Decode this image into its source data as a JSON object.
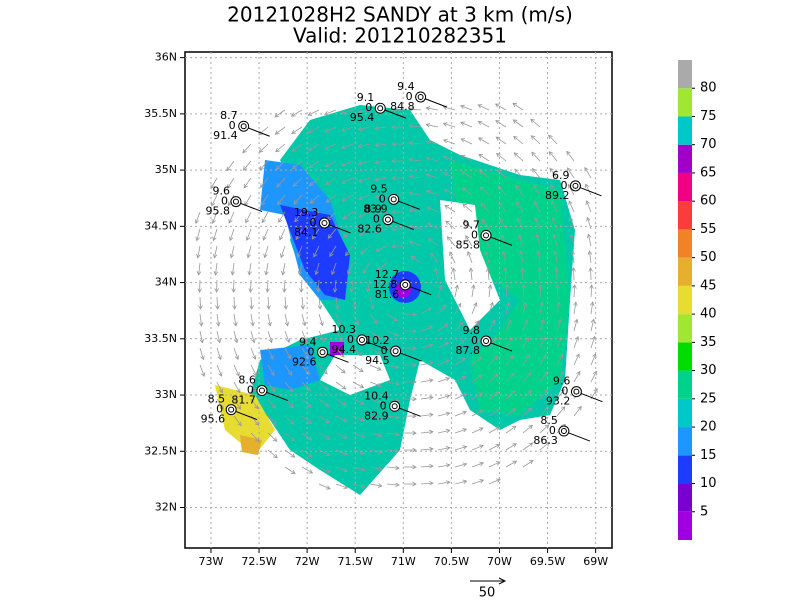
{
  "map": {
    "title": "20121028H2 SANDY at 3 km (m/s)",
    "subtitle": "Valid: 201210282351",
    "xlim": [
      -73.27,
      -68.83
    ],
    "ylim": [
      31.64,
      36.05
    ],
    "xticks": [
      {
        "value": -73,
        "label": "73W"
      },
      {
        "value": -72.5,
        "label": "72.5W"
      },
      {
        "value": -72,
        "label": "72W"
      },
      {
        "value": -71.5,
        "label": "71.5W"
      },
      {
        "value": -71,
        "label": "71W"
      },
      {
        "value": -70.5,
        "label": "70.5W"
      },
      {
        "value": -70,
        "label": "70W"
      },
      {
        "value": -69.5,
        "label": "69.5W"
      },
      {
        "value": -69,
        "label": "69W"
      }
    ],
    "yticks": [
      {
        "value": 32,
        "label": "32N"
      },
      {
        "value": 32.5,
        "label": "32.5N"
      },
      {
        "value": 33,
        "label": "33N"
      },
      {
        "value": 33.5,
        "label": "33.5N"
      },
      {
        "value": 34,
        "label": "34N"
      },
      {
        "value": 34.5,
        "label": "34.5N"
      },
      {
        "value": 35,
        "label": "35N"
      },
      {
        "value": 35.5,
        "label": "35.5N"
      },
      {
        "value": 36,
        "label": "36N"
      }
    ],
    "grid": true,
    "colorbar": {
      "clim": [
        0,
        85
      ],
      "levels": [
        5,
        10,
        15,
        20,
        25,
        30,
        35,
        40,
        45,
        50,
        55,
        60,
        65,
        70,
        75,
        80
      ],
      "colors": [
        "#a000e0",
        "#7a00d0",
        "#1e3cff",
        "#1e96ff",
        "#00c8c8",
        "#00d28c",
        "#00dc00",
        "#a0e632",
        "#e6dc32",
        "#e6af2d",
        "#f08228",
        "#fa3c3c",
        "#f00082",
        "#a000c8",
        "#00c8c8",
        "#a0e632",
        "#aaaaaa"
      ]
    },
    "reference_vector": 50,
    "stations": [
      {
        "lon": -70.82,
        "lat": 35.65,
        "top": "9.4",
        "mid": "0",
        "bottom": "84.8"
      },
      {
        "lon": -71.24,
        "lat": 35.55,
        "top": "9.1",
        "mid": "0",
        "bottom": "95.4"
      },
      {
        "lon": -72.66,
        "lat": 35.39,
        "top": "8.7",
        "mid": "0",
        "bottom": "91.4"
      },
      {
        "lon": -72.74,
        "lat": 34.72,
        "top": "9.6",
        "mid": "0",
        "bottom": "95.8"
      },
      {
        "lon": -69.21,
        "lat": 34.86,
        "top": "6.9",
        "mid": "0",
        "bottom": "89.2"
      },
      {
        "lon": -71.1,
        "lat": 34.74,
        "top": "9.5",
        "mid": "0",
        "bottom": "83.9"
      },
      {
        "lon": -71.82,
        "lat": 34.53,
        "top": "19.3",
        "mid": "0",
        "bottom": "84.1"
      },
      {
        "lon": -71.16,
        "lat": 34.56,
        "top": "8.9",
        "mid": "0",
        "bottom": "82.6"
      },
      {
        "lon": -70.14,
        "lat": 34.42,
        "top": "9.7",
        "mid": "0",
        "bottom": "85.8"
      },
      {
        "lon": -70.98,
        "lat": 33.98,
        "top": "12.7",
        "mid": "12.8",
        "bottom": "81.6"
      },
      {
        "lon": -71.43,
        "lat": 33.49,
        "top": "10.3",
        "mid": "0",
        "bottom": "94.4"
      },
      {
        "lon": -71.84,
        "lat": 33.38,
        "top": "9.4",
        "mid": "0",
        "bottom": "92.6"
      },
      {
        "lon": -71.08,
        "lat": 33.39,
        "top": "10.2",
        "mid": "0",
        "bottom": "94.5"
      },
      {
        "lon": -70.14,
        "lat": 33.48,
        "top": "9.8",
        "mid": "0",
        "bottom": "87.8"
      },
      {
        "lon": -72.47,
        "lat": 33.04,
        "top": "8.6",
        "mid": "0",
        "bottom": "81.7"
      },
      {
        "lon": -72.79,
        "lat": 32.87,
        "top": "8.5",
        "mid": "0",
        "bottom": "95.6"
      },
      {
        "lon": -71.09,
        "lat": 32.9,
        "top": "10.4",
        "mid": "0",
        "bottom": "82.9"
      },
      {
        "lon": -69.2,
        "lat": 33.03,
        "top": "9.6",
        "mid": "0",
        "bottom": "93.2"
      },
      {
        "lon": -69.33,
        "lat": 32.68,
        "top": "8.5",
        "mid": "0",
        "bottom": "86.3"
      }
    ]
  }
}
